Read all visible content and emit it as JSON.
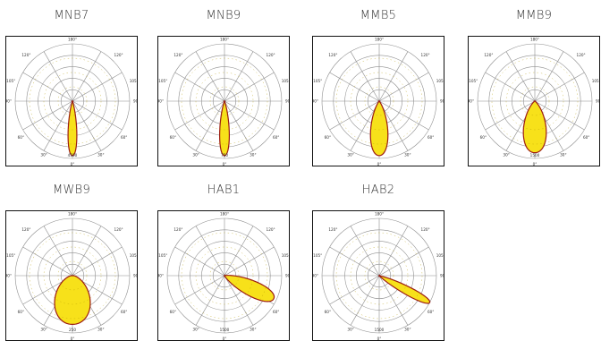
{
  "chart_data": [
    {
      "type": "polar",
      "title": "MNB7",
      "angle_labels": [
        "180°",
        "120°",
        "120°",
        "105°",
        "105°",
        "90°",
        "90°",
        "60°",
        "60°",
        "30°",
        "30°",
        "0°"
      ],
      "radial_labels": [
        "4500"
      ],
      "series": [
        {
          "half_angle_deg": 10,
          "peak": 0.95
        }
      ]
    },
    {
      "type": "polar",
      "title": "MNB9",
      "angle_labels": [
        "180°",
        "120°",
        "120°",
        "105°",
        "105°",
        "90°",
        "90°",
        "60°",
        "60°",
        "30°",
        "30°",
        "0°"
      ],
      "radial_labels": [
        "750"
      ],
      "series": [
        {
          "half_angle_deg": 11,
          "peak": 0.95
        }
      ]
    },
    {
      "type": "polar",
      "title": "MMB5",
      "angle_labels": [
        "180°",
        "120°",
        "120°",
        "105°",
        "105°",
        "90°",
        "90°",
        "60°",
        "60°",
        "30°",
        "30°",
        "0°"
      ],
      "radial_labels": [],
      "series": [
        {
          "half_angle_deg": 20,
          "peak": 0.95
        }
      ]
    },
    {
      "type": "polar",
      "title": "MMB9",
      "angle_labels": [
        "180°",
        "120°",
        "120°",
        "105°",
        "105°",
        "90°",
        "90°",
        "60°",
        "60°",
        "30°",
        "30°",
        "0°"
      ],
      "radial_labels": [
        "1500"
      ],
      "series": [
        {
          "half_angle_deg": 28,
          "peak": 0.9
        }
      ]
    },
    {
      "type": "polar",
      "title": "MWB9",
      "angle_labels": [
        "180°",
        "120°",
        "120°",
        "105°",
        "105°",
        "90°",
        "90°",
        "60°",
        "60°",
        "30°",
        "30°",
        "0°"
      ],
      "radial_labels": [
        "250"
      ],
      "series": [
        {
          "half_angle_deg": 48,
          "peak": 0.85
        }
      ]
    },
    {
      "type": "polar",
      "title": "HAB1",
      "angle_labels": [
        "180°",
        "120°",
        "120°",
        "105°",
        "105°",
        "90°",
        "90°",
        "60°",
        "60°",
        "30°",
        "30°",
        "0°"
      ],
      "radial_labels": [
        "1500"
      ],
      "series": [
        {
          "half_angle_deg": 18,
          "peak": 0.95,
          "tilt_deg": 65
        }
      ]
    },
    {
      "type": "polar",
      "title": "HAB2",
      "angle_labels": [
        "180°",
        "120°",
        "120°",
        "105°",
        "105°",
        "90°",
        "90°",
        "60°",
        "60°",
        "30°",
        "30°",
        "0°"
      ],
      "radial_labels": [
        "1500"
      ],
      "series": [
        {
          "half_angle_deg": 9,
          "peak": 1.0,
          "tilt_deg": 62
        }
      ]
    }
  ],
  "colors": {
    "fill": "#f7e11a",
    "outline": "#9c1d12",
    "grid": "#8e8e8e"
  }
}
